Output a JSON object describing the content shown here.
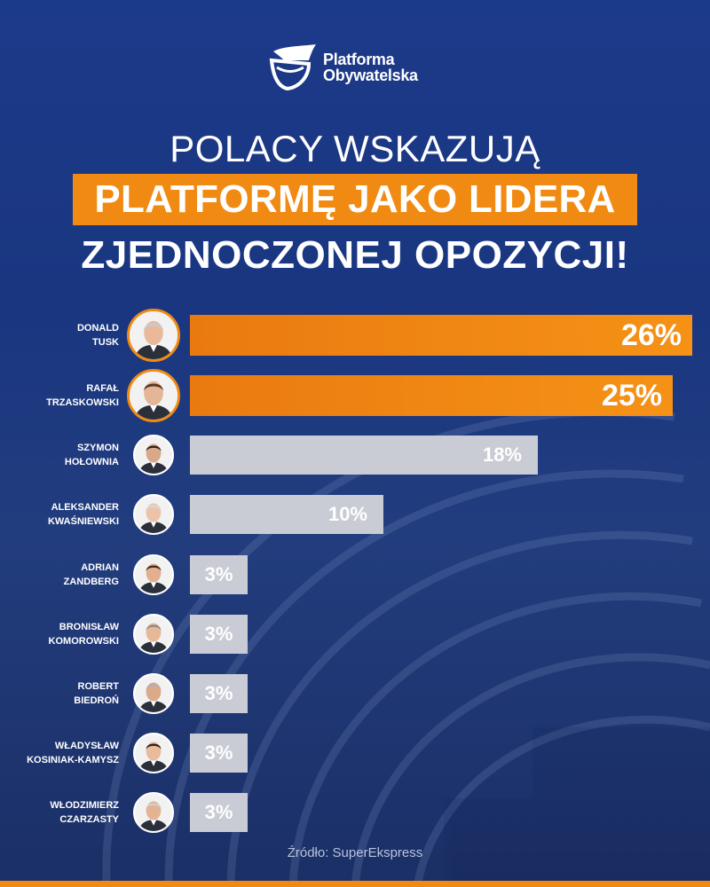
{
  "logo": {
    "line1": "Platforma",
    "line2": "Obywatelska"
  },
  "headline": {
    "line1": "POLACY WSKAZUJĄ",
    "line2": "PLATFORMĘ JAKO LIDERA",
    "line3": "ZJEDNOCZONEJ OPOZYCJI!"
  },
  "colors": {
    "leader_bar": "#f08a12",
    "other_bar": "#c9ccd4",
    "background": "#1c3a8a"
  },
  "chart_data": {
    "type": "bar",
    "orientation": "horizontal",
    "categories": [
      "DONALD TUSK",
      "RAFAŁ TRZASKOWSKI",
      "SZYMON HOŁOWNIA",
      "ALEKSANDER KWAŚNIEWSKI",
      "ADRIAN ZANDBERG",
      "BRONISŁAW KOMOROWSKI",
      "ROBERT BIEDROŃ",
      "WŁADYSŁAW KOSINIAK-KAMYSZ",
      "WŁODZIMIERZ CZARZASTY"
    ],
    "values": [
      26,
      25,
      18,
      10,
      3,
      3,
      3,
      3,
      3
    ],
    "data_labels": [
      "26%",
      "25%",
      "18%",
      "10%",
      "3%",
      "3%",
      "3%",
      "3%",
      "3%"
    ],
    "xlim": [
      0,
      26
    ],
    "grid": false
  },
  "rows": [
    {
      "first": "DONALD",
      "last": "TUSK",
      "label": "26%",
      "value": 26,
      "party": "po"
    },
    {
      "first": "RAFAŁ",
      "last": "TRZASKOWSKI",
      "label": "25%",
      "value": 25,
      "party": "po"
    },
    {
      "first": "SZYMON",
      "last": "HOŁOWNIA",
      "label": "18%",
      "value": 18,
      "party": "other"
    },
    {
      "first": "ALEKSANDER",
      "last": "KWAŚNIEWSKI",
      "label": "10%",
      "value": 10,
      "party": "other"
    },
    {
      "first": "ADRIAN",
      "last": "ZANDBERG",
      "label": "3%",
      "value": 3,
      "party": "other"
    },
    {
      "first": "BRONISŁAW",
      "last": "KOMOROWSKI",
      "label": "3%",
      "value": 3,
      "party": "other"
    },
    {
      "first": "ROBERT",
      "last": "BIEDROŃ",
      "label": "3%",
      "value": 3,
      "party": "other"
    },
    {
      "first": "WŁADYSŁAW",
      "last": "KOSINIAK-KAMYSZ",
      "label": "3%",
      "value": 3,
      "party": "other"
    },
    {
      "first": "WŁODZIMIERZ",
      "last": "CZARZASTY",
      "label": "3%",
      "value": 3,
      "party": "other"
    }
  ],
  "source": "Źródło: SuperEkspress"
}
